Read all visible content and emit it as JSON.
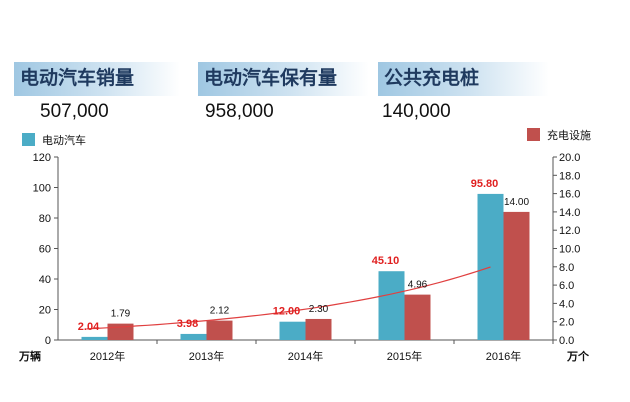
{
  "kpis": [
    {
      "label": "电动汽车销量",
      "value": "507,000"
    },
    {
      "label": "电动汽车保有量",
      "value": "958,000"
    },
    {
      "label": "公共充电桩",
      "value": "140,000"
    }
  ],
  "chart_data": {
    "type": "bar",
    "categories": [
      "2012年",
      "2013年",
      "2014年",
      "2015年",
      "2016年"
    ],
    "series": [
      {
        "name": "电动汽车",
        "axis": "left",
        "color": "#4bacc6",
        "values": [
          2.04,
          3.98,
          12.0,
          45.1,
          95.8
        ],
        "labels": [
          "2.04",
          "3.98",
          "12.00",
          "45.10",
          "95.80"
        ]
      },
      {
        "name": "充电设施",
        "axis": "right",
        "color": "#c0504d",
        "values": [
          1.79,
          2.12,
          2.3,
          4.96,
          14.0
        ],
        "labels": [
          "1.79",
          "2.12",
          "2.30",
          "4.96",
          "14.00"
        ]
      }
    ],
    "y_left": {
      "label": "万辆",
      "range": [
        0,
        120
      ],
      "ticks": [
        "0",
        "20",
        "40",
        "60",
        "80",
        "100",
        "120"
      ]
    },
    "y_right": {
      "label": "万个",
      "range": [
        0,
        20
      ],
      "ticks": [
        "0.0",
        "2.0",
        "4.0",
        "6.0",
        "8.0",
        "10.0",
        "12.0",
        "14.0",
        "16.0",
        "18.0",
        "20.0"
      ]
    },
    "trendline": {
      "color": "#e04040"
    },
    "legend": {
      "left": "top-left",
      "right": "top-right"
    }
  }
}
